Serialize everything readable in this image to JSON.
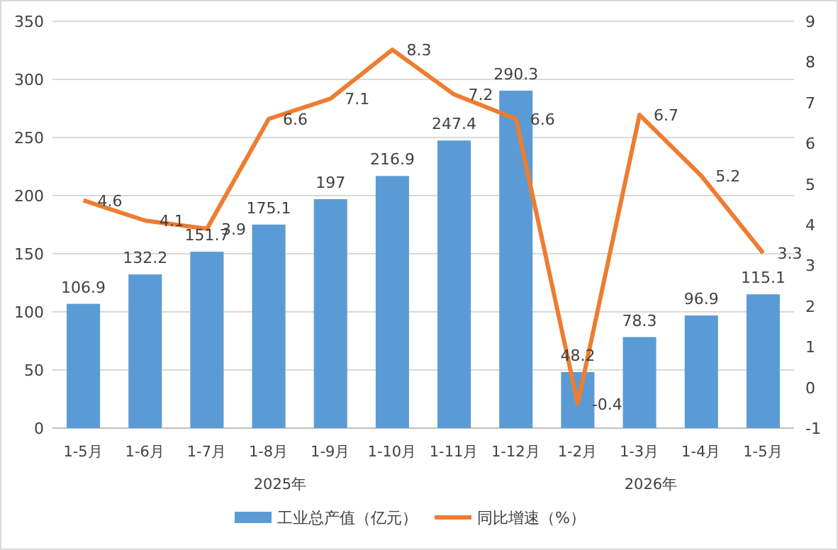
{
  "chart_data": {
    "type": "bar",
    "categories": [
      "1-5月",
      "1-6月",
      "1-7月",
      "1-8月",
      "1-9月",
      "1-10月",
      "1-11月",
      "1-12月",
      "1-2月",
      "1-3月",
      "1-4月",
      "1-5月"
    ],
    "series": [
      {
        "name": "工业总产值（亿元）",
        "color": "#5b9bd5",
        "values": [
          106.9,
          132.2,
          151.7,
          175.1,
          197,
          216.9,
          247.4,
          290.3,
          48.2,
          78.3,
          96.9,
          115.1
        ]
      },
      {
        "name": "同比增速（%）",
        "type": "line",
        "axis": "y2",
        "color": "#ed7d31",
        "marker": "none",
        "values": [
          4.6,
          4.1,
          3.9,
          6.6,
          7.1,
          8.3,
          7.2,
          6.6,
          -0.4,
          6.7,
          5.2,
          3.3
        ]
      }
    ],
    "ylim": [
      0,
      350
    ],
    "yticks": [
      0,
      50,
      100,
      150,
      200,
      250,
      300,
      350
    ],
    "y2lim": [
      -1,
      9
    ],
    "y2ticks": [
      -1,
      0,
      1,
      2,
      3,
      4,
      5,
      6,
      7,
      8,
      9
    ],
    "grid": "y",
    "legend": "bottom",
    "data_labels": true,
    "annotations": [
      "2025年",
      "2026年"
    ]
  }
}
